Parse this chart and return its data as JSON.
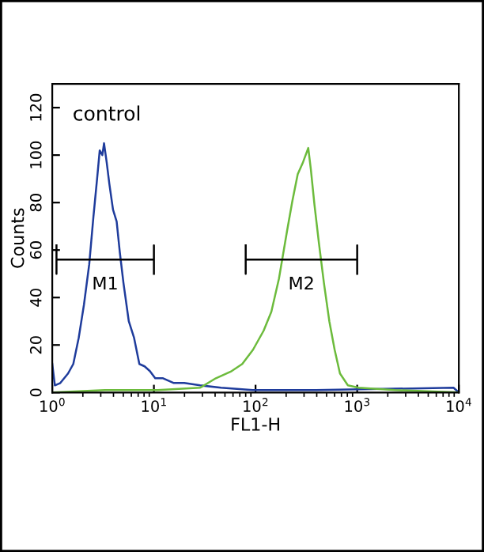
{
  "chart_data": {
    "type": "line",
    "xlabel": "FL1-H",
    "ylabel": "Counts",
    "log": "x",
    "xlim": [
      1,
      10000
    ],
    "xticks": [
      {
        "value": 1,
        "label": "10$^{0}$"
      },
      {
        "value": 10,
        "label": "10$^{1}$"
      },
      {
        "value": 100,
        "label": "10$^{2}$"
      },
      {
        "value": 1000,
        "label": "10$^{3}$"
      },
      {
        "value": 10000,
        "label": "10$^{4}$"
      }
    ],
    "ylim": [
      0,
      130
    ],
    "yticks": [
      0,
      20,
      40,
      60,
      80,
      100,
      120
    ],
    "grid": false,
    "legend": false,
    "annotations": [
      "control"
    ],
    "series": [
      {
        "color": "#1f3c9c",
        "x": [
          1.0,
          1.06,
          1.2,
          1.43,
          1.61,
          1.82,
          2.05,
          2.31,
          2.54,
          2.76,
          2.93,
          3.11,
          3.23,
          3.43,
          3.64,
          3.96,
          4.3,
          4.62,
          5.02,
          5.66,
          6.38,
          7.19,
          8.1,
          9.13,
          10.3,
          12.3,
          15.7,
          19.9,
          28.5,
          45.8,
          94,
          395,
          8860,
          10000
        ],
        "values": [
          12,
          3,
          4,
          8,
          12,
          23,
          37,
          54,
          74,
          90,
          102,
          100,
          105,
          97,
          88,
          77,
          72,
          59,
          46,
          30,
          23,
          12,
          11,
          9,
          6,
          6,
          4,
          4,
          3,
          2,
          1,
          1,
          2,
          0
        ]
      },
      {
        "color": "#6cbb3c",
        "x": [
          1.0,
          3.3,
          10.9,
          28.5,
          40.7,
          58.1,
          74,
          94.4,
          120,
          143,
          170,
          204,
          231,
          260,
          293,
          330,
          350,
          380,
          420,
          471,
          532,
          600,
          677,
          810,
          1030,
          2360,
          10000
        ],
        "values": [
          0,
          1,
          1,
          2,
          6,
          9,
          12,
          18,
          26,
          34,
          48,
          68,
          81,
          92,
          97,
          103,
          94,
          79,
          63,
          46,
          30,
          18,
          8,
          3,
          2,
          1,
          0
        ]
      },
      {
        "name": "M1",
        "color": "#000000",
        "x": [
          1.1,
          1.1,
          1.1,
          10,
          10,
          10
        ],
        "values": [
          62,
          50,
          56,
          56,
          62,
          50
        ]
      },
      {
        "name": "M2",
        "color": "#000000",
        "x": [
          80,
          80,
          80,
          1000,
          1000,
          1000
        ],
        "values": [
          62,
          50,
          56,
          56,
          62,
          50
        ]
      }
    ]
  }
}
